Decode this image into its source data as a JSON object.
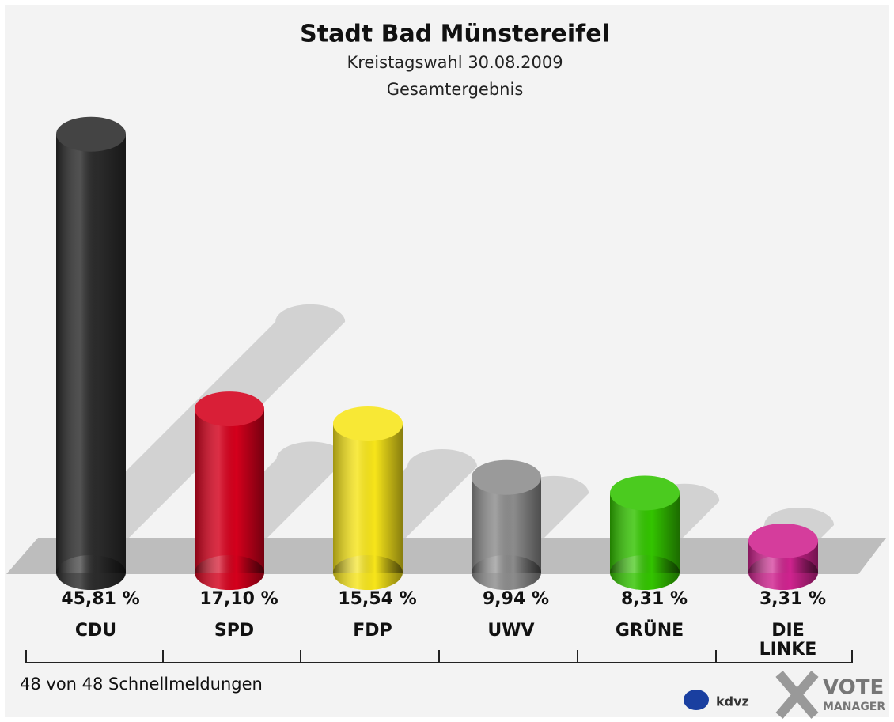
{
  "chart_data": {
    "type": "bar",
    "title": "Stadt Bad Münstereifel",
    "subtitle": "Kreistagswahl 30.08.2009",
    "subtitle2": "Gesamtergebnis",
    "categories": [
      "CDU",
      "SPD",
      "FDP",
      "UWV",
      "GRÜNE",
      "DIE LINKE"
    ],
    "values": [
      45.81,
      17.1,
      15.54,
      9.94,
      8.31,
      3.31
    ],
    "value_labels": [
      "45,81 %",
      "17,10 %",
      "15,54 %",
      "9,94 %",
      "8,31 %",
      "3,31 %"
    ],
    "colors": [
      "#2b2b2b",
      "#d4001c",
      "#f7e51a",
      "#8c8c8c",
      "#33c400",
      "#d0238f"
    ],
    "footnote": "48 von 48 Schnellmeldungen",
    "logos": [
      "kdvz",
      "VOTE",
      "MANAGER"
    ]
  }
}
